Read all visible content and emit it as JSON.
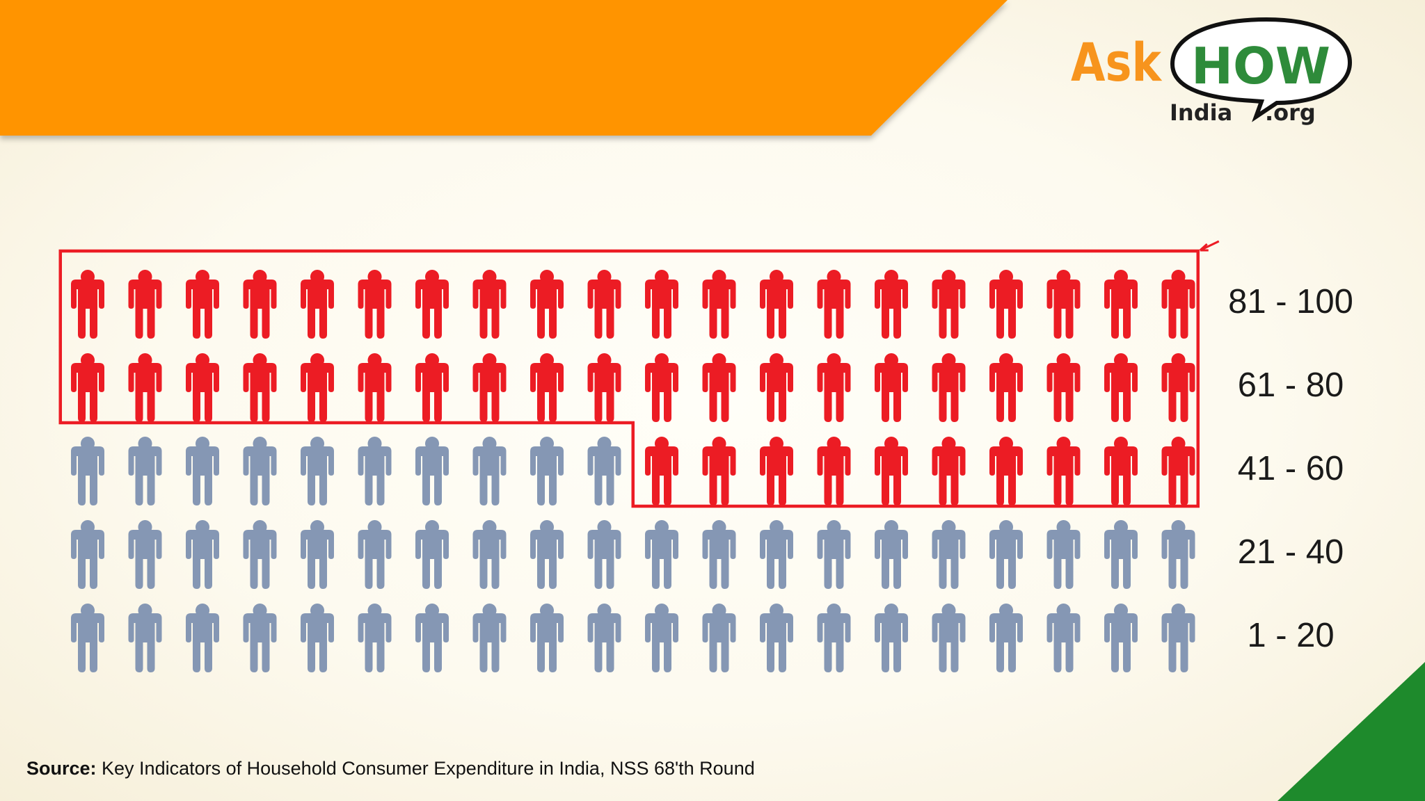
{
  "logo": {
    "ask": "Ask",
    "how": "HOW",
    "india": "India",
    "org": ".org"
  },
  "colors": {
    "banner": "#ff9400",
    "corner": "#1e8a2c",
    "highlight": "#ec1c24",
    "base": "#8597b4",
    "logo_orange": "#f7941d",
    "logo_green": "#2e8b3a"
  },
  "chart_data": {
    "type": "pictogram",
    "icons_per_row": 20,
    "rows": [
      {
        "label": "81 - 100",
        "highlighted": 20
      },
      {
        "label": "61 - 80",
        "highlighted": 20
      },
      {
        "label": "41 - 60",
        "highlighted": 10,
        "highlight_side": "right"
      },
      {
        "label": "21 - 40",
        "highlighted": 0
      },
      {
        "label": "1 - 20",
        "highlighted": 0
      }
    ]
  },
  "source": {
    "label": "Source:",
    "text": " Key Indicators of Household Consumer Expenditure in India, NSS 68'th Round"
  }
}
